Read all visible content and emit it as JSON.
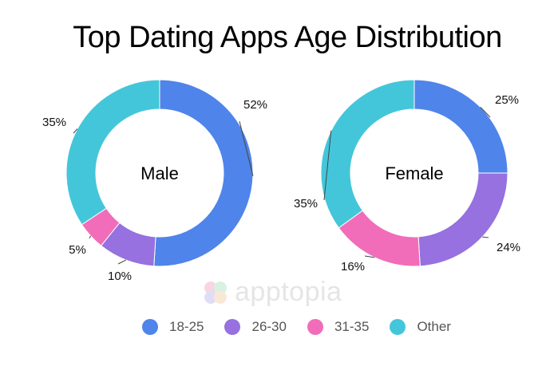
{
  "title": "Top Dating Apps Age Distribution",
  "watermark": "apptopia",
  "chart_data": [
    {
      "type": "pie",
      "variant": "donut",
      "label": "Male",
      "categories": [
        "18-25",
        "26-30",
        "31-35",
        "Other"
      ],
      "values": [
        52,
        10,
        5,
        35
      ],
      "value_labels": [
        "52%",
        "10%",
        "5%",
        "35%"
      ]
    },
    {
      "type": "pie",
      "variant": "donut",
      "label": "Female",
      "categories": [
        "18-25",
        "26-30",
        "31-35",
        "Other"
      ],
      "values": [
        25,
        24,
        16,
        35
      ],
      "value_labels": [
        "25%",
        "24%",
        "16%",
        "35%"
      ]
    }
  ],
  "legend": [
    {
      "label": "18-25",
      "color": "#4f84ea"
    },
    {
      "label": "26-30",
      "color": "#9671df"
    },
    {
      "label": "31-35",
      "color": "#f16dba"
    },
    {
      "label": "Other",
      "color": "#44c6da"
    }
  ]
}
